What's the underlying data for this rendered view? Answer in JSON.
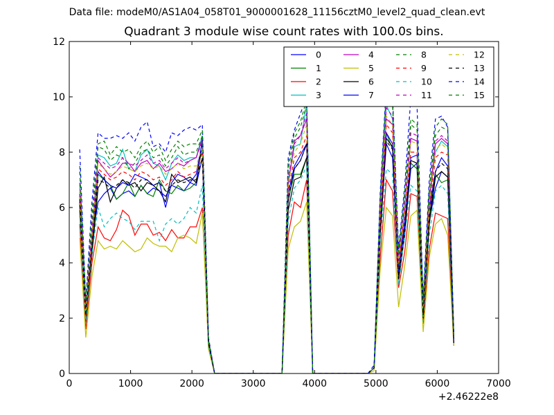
{
  "header": {
    "data_file": "Data file: modeM0/AS1A04_058T01_9000001628_11156cztM0_level2_quad_clean.evt"
  },
  "chart_data": {
    "type": "line",
    "title": "Quadrant 3 module wise count rates with 100.0s bins.",
    "xlabel": "",
    "ylabel": "",
    "x_offset_label": "+2.46222e8",
    "xlim": [
      0,
      7000
    ],
    "ylim": [
      0,
      12
    ],
    "x_ticks": [
      0,
      1000,
      2000,
      3000,
      4000,
      5000,
      6000,
      7000
    ],
    "y_ticks": [
      0,
      2,
      4,
      6,
      8,
      10,
      12
    ],
    "grid": false,
    "legend_placement": "top-right",
    "legend_columns": 4,
    "x": [
      170,
      270,
      370,
      470,
      570,
      670,
      770,
      870,
      970,
      1070,
      1170,
      1270,
      1370,
      1470,
      1570,
      1670,
      1770,
      1870,
      1970,
      2070,
      2170,
      2270,
      2370,
      3470,
      3570,
      3670,
      3770,
      3870,
      3970,
      4870,
      4970,
      5070,
      5170,
      5270,
      5370,
      5470,
      5570,
      5670,
      5770,
      5870,
      5970,
      6070,
      6170,
      6270
    ],
    "series": [
      {
        "name": "0",
        "color": "#0000ff",
        "dash": false,
        "values": [
          6.2,
          2.0,
          4.8,
          6.2,
          6.5,
          6.7,
          6.3,
          6.5,
          6.6,
          6.4,
          6.8,
          6.5,
          6.7,
          6.6,
          6.4,
          6.8,
          6.7,
          6.6,
          6.9,
          6.8,
          7.8,
          1.1,
          0,
          0,
          6.2,
          7.4,
          7.7,
          8.3,
          0,
          0,
          0.2,
          5.2,
          8.3,
          7.8,
          3.8,
          5.2,
          7.4,
          7.6,
          2.3,
          5.5,
          6.7,
          7.3,
          7.1,
          1.1
        ]
      },
      {
        "name": "1",
        "color": "#008000",
        "dash": false,
        "values": [
          5.9,
          1.8,
          4.5,
          7.2,
          7.0,
          6.8,
          6.3,
          6.5,
          6.9,
          6.4,
          6.8,
          6.5,
          6.4,
          7.0,
          6.6,
          6.5,
          6.8,
          6.6,
          6.7,
          6.9,
          8.3,
          1.1,
          0,
          0,
          6.3,
          7.2,
          7.2,
          7.8,
          0,
          0,
          0.2,
          5.0,
          8.7,
          8.1,
          3.9,
          5.5,
          7.6,
          7.4,
          2.1,
          5.6,
          7.2,
          6.9,
          7.0,
          1.2
        ]
      },
      {
        "name": "2",
        "color": "#ff0000",
        "dash": false,
        "values": [
          5.4,
          1.6,
          4.0,
          5.3,
          4.9,
          4.8,
          5.2,
          5.9,
          5.7,
          5.0,
          5.4,
          5.4,
          5.0,
          5.1,
          4.8,
          5.2,
          4.9,
          4.9,
          5.3,
          5.3,
          6.0,
          0.9,
          0,
          0,
          5.0,
          6.2,
          6.0,
          7.0,
          0,
          0,
          0.2,
          4.2,
          7.0,
          6.6,
          3.1,
          4.4,
          6.5,
          6.4,
          1.8,
          4.5,
          5.8,
          5.7,
          5.6,
          1.0
        ]
      },
      {
        "name": "3",
        "color": "#00bfbf",
        "dash": false,
        "values": [
          6.8,
          2.3,
          5.0,
          7.9,
          7.8,
          7.5,
          7.6,
          8.1,
          7.4,
          7.3,
          7.9,
          8.1,
          7.6,
          7.5,
          7.0,
          7.6,
          7.9,
          7.7,
          7.8,
          7.8,
          8.6,
          1.2,
          0,
          0,
          7.0,
          8.2,
          8.3,
          9.8,
          0,
          0,
          0.2,
          5.9,
          9.7,
          9.2,
          4.1,
          6.2,
          8.5,
          8.4,
          2.4,
          6.2,
          8.0,
          8.4,
          8.2,
          1.3
        ]
      },
      {
        "name": "4",
        "color": "#bf00bf",
        "dash": false,
        "values": [
          6.5,
          2.2,
          5.0,
          7.7,
          7.4,
          7.1,
          7.3,
          7.6,
          7.6,
          7.3,
          7.6,
          7.7,
          7.4,
          7.6,
          7.3,
          7.4,
          7.6,
          7.5,
          7.7,
          7.8,
          8.5,
          1.2,
          0,
          0,
          6.8,
          8.4,
          8.6,
          9.2,
          0,
          0,
          0.2,
          5.7,
          9.2,
          9.0,
          4.0,
          6.0,
          8.5,
          8.4,
          2.3,
          6.0,
          8.3,
          8.5,
          8.3,
          1.3
        ]
      },
      {
        "name": "5",
        "color": "#bfbf00",
        "dash": false,
        "values": [
          4.9,
          1.3,
          3.5,
          4.8,
          4.5,
          4.6,
          4.5,
          4.8,
          4.6,
          4.4,
          4.5,
          4.9,
          4.7,
          4.6,
          4.6,
          4.4,
          4.9,
          5.0,
          4.9,
          4.7,
          5.8,
          0.9,
          0,
          0,
          4.5,
          5.3,
          5.5,
          6.2,
          0,
          0,
          0.1,
          3.8,
          6.0,
          5.7,
          2.4,
          3.9,
          5.7,
          5.9,
          1.5,
          4.2,
          5.4,
          5.6,
          5.0,
          1.0
        ]
      },
      {
        "name": "6",
        "color": "#000000",
        "dash": false,
        "values": [
          6.1,
          2.2,
          4.3,
          6.7,
          7.1,
          6.2,
          6.7,
          7.0,
          6.8,
          6.9,
          6.6,
          6.9,
          6.8,
          6.6,
          6.2,
          7.2,
          6.9,
          7.0,
          7.1,
          6.9,
          8.3,
          1.1,
          0,
          0,
          5.9,
          7.0,
          7.1,
          7.8,
          0,
          0,
          0.2,
          5.0,
          8.5,
          8.2,
          3.4,
          5.0,
          7.7,
          7.6,
          2.0,
          5.4,
          7.1,
          7.3,
          7.1,
          1.1
        ]
      },
      {
        "name": "7",
        "color": "#0000ff",
        "dash": false,
        "values": [
          6.6,
          2.3,
          5.1,
          7.3,
          7.0,
          6.8,
          6.7,
          6.9,
          6.8,
          7.2,
          7.1,
          7.0,
          6.8,
          6.9,
          6.0,
          6.9,
          7.2,
          7.1,
          6.9,
          7.2,
          8.4,
          1.2,
          0,
          0,
          6.5,
          7.5,
          7.9,
          8.3,
          0,
          0,
          0.2,
          5.4,
          8.7,
          8.3,
          3.6,
          5.5,
          7.8,
          7.9,
          2.2,
          5.9,
          7.3,
          7.8,
          7.5,
          1.2
        ]
      },
      {
        "name": "8",
        "color": "#008000",
        "dash": true,
        "values": [
          7.3,
          2.4,
          5.5,
          8.2,
          8.1,
          7.7,
          7.9,
          7.8,
          7.4,
          7.6,
          8.0,
          8.1,
          7.8,
          7.9,
          7.5,
          7.8,
          8.2,
          7.9,
          8.0,
          8.0,
          8.6,
          1.2,
          0,
          0,
          7.4,
          8.5,
          8.9,
          9.7,
          0,
          0,
          0.2,
          6.2,
          10.1,
          9.7,
          4.3,
          6.5,
          9.0,
          8.8,
          2.5,
          6.5,
          8.6,
          8.9,
          8.8,
          1.4
        ]
      },
      {
        "name": "9",
        "color": "#ff0000",
        "dash": true,
        "values": [
          6.4,
          2.1,
          4.8,
          7.4,
          7.2,
          7.0,
          7.1,
          7.3,
          7.2,
          7.0,
          7.3,
          7.2,
          7.0,
          7.1,
          6.8,
          7.0,
          7.3,
          7.1,
          7.2,
          7.3,
          8.0,
          1.1,
          0,
          0,
          6.6,
          7.8,
          8.0,
          8.6,
          0,
          0,
          0.2,
          5.5,
          9.0,
          8.7,
          3.8,
          5.8,
          8.0,
          8.0,
          2.3,
          5.9,
          7.8,
          8.0,
          7.9,
          1.2
        ]
      },
      {
        "name": "10",
        "color": "#00bfbf",
        "dash": true,
        "values": [
          5.7,
          1.8,
          4.3,
          6.0,
          5.3,
          5.6,
          5.8,
          5.6,
          5.5,
          5.2,
          5.5,
          5.5,
          5.5,
          4.8,
          5.4,
          5.6,
          5.4,
          5.6,
          6.0,
          5.8,
          6.8,
          1.0,
          0,
          0,
          5.5,
          6.7,
          7.0,
          7.5,
          0,
          0,
          0.2,
          4.8,
          7.4,
          7.2,
          3.2,
          5.0,
          6.8,
          6.6,
          1.9,
          5.0,
          6.6,
          6.8,
          6.5,
          1.1
        ]
      },
      {
        "name": "11",
        "color": "#bf00bf",
        "dash": true,
        "values": [
          6.9,
          2.3,
          5.2,
          7.8,
          7.6,
          7.4,
          7.5,
          7.8,
          7.6,
          7.5,
          7.7,
          7.9,
          7.6,
          7.7,
          7.4,
          7.6,
          7.8,
          7.6,
          7.7,
          7.8,
          8.4,
          1.2,
          0,
          0,
          7.1,
          8.3,
          8.6,
          9.4,
          0,
          0,
          0.2,
          6.0,
          9.6,
          9.3,
          4.1,
          6.2,
          8.7,
          8.6,
          2.4,
          6.3,
          8.4,
          8.6,
          8.4,
          1.3
        ]
      },
      {
        "name": "12",
        "color": "#bfbf00",
        "dash": true,
        "values": [
          6.6,
          2.2,
          5.0,
          7.6,
          7.4,
          7.2,
          7.3,
          7.5,
          7.4,
          7.3,
          7.5,
          7.6,
          7.4,
          7.5,
          7.2,
          7.4,
          7.6,
          7.4,
          7.5,
          7.5,
          8.2,
          1.2,
          0,
          0,
          6.9,
          8.0,
          8.3,
          9.0,
          0,
          0,
          0.2,
          5.8,
          9.3,
          9.0,
          4.0,
          6.0,
          8.4,
          8.3,
          2.3,
          6.1,
          8.1,
          8.3,
          8.1,
          1.3
        ]
      },
      {
        "name": "13",
        "color": "#000000",
        "dash": true,
        "values": [
          6.3,
          2.1,
          4.6,
          7.0,
          6.9,
          6.7,
          6.8,
          7.0,
          6.9,
          6.7,
          7.0,
          7.0,
          6.8,
          6.9,
          6.6,
          6.8,
          7.0,
          6.9,
          7.0,
          7.0,
          7.8,
          1.1,
          0,
          0,
          6.3,
          7.4,
          7.7,
          8.3,
          0,
          0,
          0.2,
          5.2,
          8.4,
          8.1,
          3.5,
          5.3,
          7.7,
          7.6,
          2.1,
          5.6,
          7.3,
          7.6,
          7.4,
          1.1
        ]
      },
      {
        "name": "14",
        "color": "#0000ff",
        "dash": true,
        "values": [
          8.1,
          2.6,
          6.2,
          8.7,
          8.5,
          8.5,
          8.6,
          8.5,
          8.7,
          8.4,
          8.9,
          9.1,
          8.2,
          8.3,
          8.0,
          8.7,
          8.6,
          8.8,
          8.9,
          8.8,
          9.0,
          1.3,
          0,
          0,
          7.8,
          8.8,
          9.4,
          10.0,
          0,
          0,
          0.3,
          6.6,
          10.4,
          10.1,
          4.5,
          6.8,
          10.0,
          9.7,
          2.7,
          7.0,
          9.2,
          9.3,
          8.9,
          1.5
        ]
      },
      {
        "name": "15",
        "color": "#008000",
        "dash": true,
        "values": [
          7.5,
          2.5,
          5.8,
          8.3,
          8.4,
          7.9,
          8.2,
          8.0,
          8.1,
          7.8,
          8.2,
          8.4,
          8.0,
          8.2,
          7.7,
          8.1,
          8.4,
          8.2,
          8.3,
          8.3,
          8.8,
          1.2,
          0,
          0,
          7.6,
          8.7,
          9.1,
          9.9,
          0,
          0,
          0.2,
          6.4,
          10.2,
          9.9,
          4.4,
          6.6,
          9.2,
          9.0,
          2.6,
          6.7,
          8.9,
          9.2,
          9.0,
          1.4
        ]
      }
    ]
  }
}
